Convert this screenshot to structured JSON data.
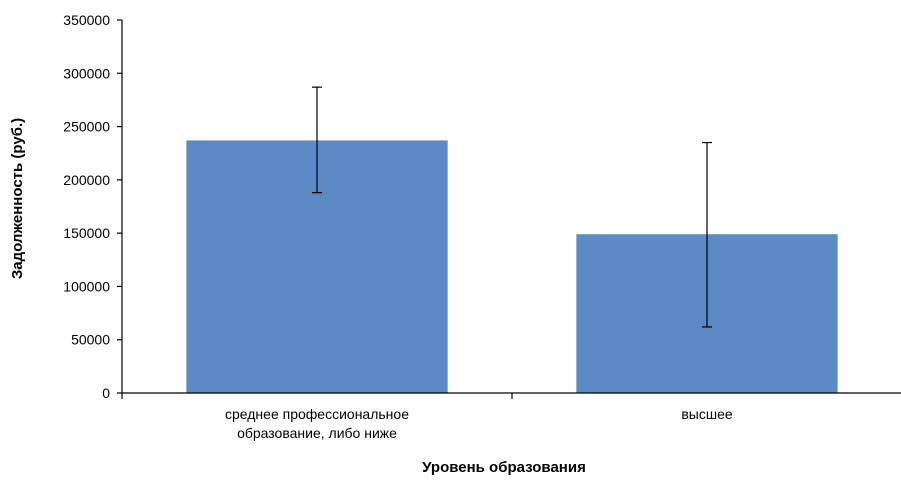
{
  "chart_data": {
    "type": "bar",
    "title": "",
    "xlabel": "Уровень образования",
    "ylabel": "Задолженность (руб.)",
    "categories": [
      [
        "среднее профессиональное",
        "образование, либо ниже"
      ],
      [
        "высшее"
      ]
    ],
    "values": [
      237000,
      149000
    ],
    "error_bars": [
      {
        "low": 188000,
        "high": 287000
      },
      {
        "low": 62000,
        "high": 235000
      }
    ],
    "ylim": [
      0,
      350000
    ],
    "yticks": [
      0,
      50000,
      100000,
      150000,
      200000,
      250000,
      300000,
      350000
    ],
    "ytick_labels": [
      "0",
      "50000",
      "100000",
      "150000",
      "200000",
      "250000",
      "300000",
      "350000"
    ],
    "grid": false,
    "legend": false,
    "bar_color": "#5b8ac4",
    "error_bar_color": "#000000"
  }
}
